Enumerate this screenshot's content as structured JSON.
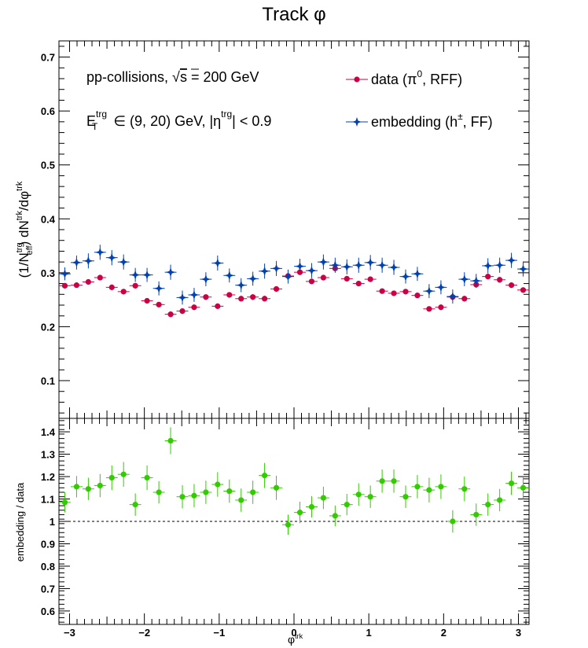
{
  "title": "Track φ",
  "annotations": {
    "line1_a": "pp-collisions, ",
    "line1_sqrt": "√",
    "line1_s": "s",
    "line1_b": " = 200 GeV",
    "line2_E": "E",
    "line2_sup": "trg",
    "line2_sub": "T",
    "line2_b": " ∈ (9, 20) GeV, |η",
    "line2_sup2": "trg",
    "line2_c": "| < 0.9"
  },
  "legend": {
    "data_a": "data (π",
    "data_sup": "0",
    "data_b": ", RFF)",
    "emb_a": "embedding (h",
    "emb_sup": "±",
    "emb_b": ", FF)"
  },
  "top_ylabel": {
    "a": "(1/N",
    "sup1": "trg",
    "sub1": "eff",
    "b": ") dN",
    "sup2": "trk",
    "c": "/dφ",
    "sup3": "trk"
  },
  "bottom_ylabel": "embedding / data",
  "xlabel": {
    "base": "φ",
    "sup": "trk"
  },
  "colors": {
    "data": "#cc0044",
    "embedding": "#0040b0",
    "ratio": "#33cc00",
    "frame": "#000000"
  },
  "chart_data": [
    {
      "type": "scatter",
      "xlim": [
        -3.14159,
        3.14159
      ],
      "ylim": [
        0.03,
        0.73
      ],
      "yticks": [
        "0.1",
        "0.2",
        "0.3",
        "0.4",
        "0.5",
        "0.6",
        "0.7"
      ],
      "yticks_values": [
        0.1,
        0.2,
        0.3,
        0.4,
        0.5,
        0.6,
        0.7
      ],
      "legend_position": "top-right",
      "x": [
        -3.063,
        -2.906,
        -2.749,
        -2.592,
        -2.435,
        -2.278,
        -2.121,
        -1.964,
        -1.806,
        -1.649,
        -1.492,
        -1.335,
        -1.178,
        -1.021,
        -0.864,
        -0.707,
        -0.55,
        -0.393,
        -0.236,
        -0.079,
        0.079,
        0.236,
        0.393,
        0.55,
        0.707,
        0.864,
        1.021,
        1.178,
        1.335,
        1.492,
        1.649,
        1.806,
        1.964,
        2.121,
        2.278,
        2.435,
        2.592,
        2.749,
        2.906,
        3.063
      ],
      "series": [
        {
          "name": "data (π0, RFF)",
          "marker": "circle",
          "y": [
            0.276,
            0.277,
            0.283,
            0.291,
            0.273,
            0.265,
            0.276,
            0.248,
            0.241,
            0.223,
            0.229,
            0.236,
            0.255,
            0.238,
            0.259,
            0.252,
            0.255,
            0.252,
            0.27,
            0.294,
            0.301,
            0.284,
            0.291,
            0.308,
            0.289,
            0.28,
            0.288,
            0.266,
            0.262,
            0.265,
            0.258,
            0.233,
            0.236,
            0.255,
            0.252,
            0.278,
            0.293,
            0.287,
            0.277,
            0.268
          ],
          "yerr": [
            0.005,
            0.005,
            0.005,
            0.005,
            0.005,
            0.005,
            0.005,
            0.005,
            0.005,
            0.005,
            0.005,
            0.005,
            0.005,
            0.005,
            0.005,
            0.005,
            0.005,
            0.005,
            0.005,
            0.005,
            0.005,
            0.005,
            0.005,
            0.005,
            0.005,
            0.005,
            0.005,
            0.005,
            0.005,
            0.005,
            0.005,
            0.005,
            0.005,
            0.005,
            0.005,
            0.005,
            0.005,
            0.005,
            0.005,
            0.005
          ]
        },
        {
          "name": "embedding (h±, FF)",
          "marker": "star",
          "y": [
            0.298,
            0.319,
            0.322,
            0.338,
            0.328,
            0.32,
            0.296,
            0.296,
            0.271,
            0.301,
            0.254,
            0.259,
            0.288,
            0.318,
            0.295,
            0.277,
            0.289,
            0.303,
            0.308,
            0.293,
            0.312,
            0.304,
            0.32,
            0.314,
            0.311,
            0.314,
            0.319,
            0.314,
            0.31,
            0.293,
            0.298,
            0.266,
            0.273,
            0.256,
            0.288,
            0.285,
            0.313,
            0.314,
            0.323,
            0.307
          ],
          "yerr": [
            0.012,
            0.013,
            0.014,
            0.014,
            0.014,
            0.014,
            0.013,
            0.013,
            0.013,
            0.014,
            0.013,
            0.013,
            0.013,
            0.014,
            0.013,
            0.013,
            0.013,
            0.014,
            0.014,
            0.013,
            0.014,
            0.014,
            0.014,
            0.014,
            0.014,
            0.014,
            0.014,
            0.014,
            0.014,
            0.013,
            0.013,
            0.013,
            0.013,
            0.013,
            0.013,
            0.013,
            0.014,
            0.014,
            0.014,
            0.014
          ]
        }
      ]
    },
    {
      "type": "scatter",
      "xlabel": "φtrk",
      "ylabel": "embedding / data",
      "xlim": [
        -3.14159,
        3.14159
      ],
      "ylim": [
        0.54,
        1.46
      ],
      "xticks": [
        "−3",
        "−2",
        "−1",
        "0",
        "1",
        "2",
        "3"
      ],
      "xticks_values": [
        -3,
        -2,
        -1,
        0,
        1,
        2,
        3
      ],
      "yticks": [
        "0.6",
        "0.7",
        "0.8",
        "0.9",
        "1",
        "1.1",
        "1.2",
        "1.3",
        "1.4"
      ],
      "yticks_values": [
        0.6,
        0.7,
        0.8,
        0.9,
        1.0,
        1.1,
        1.2,
        1.3,
        1.4
      ],
      "reference_line": 1.0,
      "x": [
        -3.063,
        -2.906,
        -2.749,
        -2.592,
        -2.435,
        -2.278,
        -2.121,
        -1.964,
        -1.806,
        -1.649,
        -1.492,
        -1.335,
        -1.178,
        -1.021,
        -0.864,
        -0.707,
        -0.55,
        -0.393,
        -0.236,
        -0.079,
        0.079,
        0.236,
        0.393,
        0.55,
        0.707,
        0.864,
        1.021,
        1.178,
        1.335,
        1.492,
        1.649,
        1.806,
        1.964,
        2.121,
        2.278,
        2.435,
        2.592,
        2.749,
        2.906,
        3.063
      ],
      "series": [
        {
          "marker": "circle",
          "y": [
            1.085,
            1.155,
            1.145,
            1.16,
            1.195,
            1.21,
            1.075,
            1.195,
            1.13,
            1.36,
            1.11,
            1.115,
            1.13,
            1.165,
            1.135,
            1.095,
            1.13,
            1.205,
            1.15,
            0.985,
            1.04,
            1.065,
            1.105,
            1.025,
            1.075,
            1.12,
            1.11,
            1.18,
            1.18,
            1.11,
            1.155,
            1.14,
            1.155,
            1.0,
            1.145,
            1.03,
            1.075,
            1.095,
            1.17,
            1.15
          ],
          "yerr": [
            0.045,
            0.048,
            0.05,
            0.052,
            0.055,
            0.055,
            0.05,
            0.055,
            0.05,
            0.06,
            0.052,
            0.052,
            0.052,
            0.055,
            0.052,
            0.052,
            0.052,
            0.056,
            0.054,
            0.045,
            0.048,
            0.048,
            0.05,
            0.046,
            0.048,
            0.05,
            0.05,
            0.052,
            0.052,
            0.05,
            0.052,
            0.055,
            0.055,
            0.05,
            0.055,
            0.05,
            0.05,
            0.05,
            0.052,
            0.05
          ]
        }
      ]
    }
  ]
}
